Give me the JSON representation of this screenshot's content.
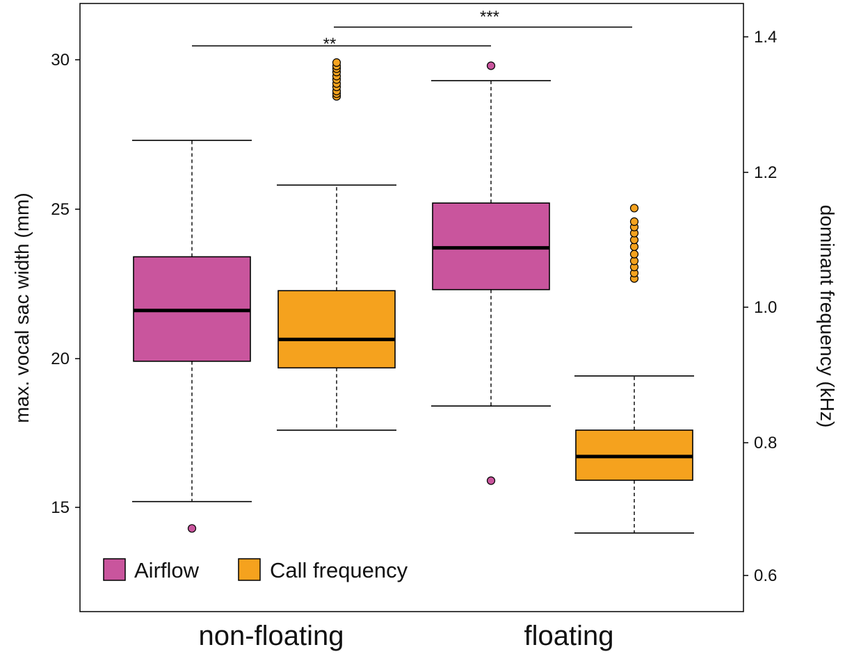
{
  "chart_data": {
    "type": "box",
    "categories": [
      "non-floating",
      "floating"
    ],
    "ylabel_left": "max. vocal sac width (mm)",
    "ylabel_right": "dominant frequency (kHz)",
    "left_ticks": [
      "15",
      "20",
      "25",
      "30"
    ],
    "right_ticks": [
      "0.6",
      "0.8",
      "1.0",
      "1.2",
      "1.4"
    ],
    "left_axis": {
      "unit": "mm",
      "ticks": [
        15,
        20,
        25,
        30
      ],
      "range": [
        11.9,
        31.9
      ]
    },
    "right_axis": {
      "unit": "kHz",
      "ticks": [
        0.6,
        0.8,
        1.0,
        1.2,
        1.4
      ],
      "range": [
        0.58,
        1.47
      ]
    },
    "legend": {
      "position": "bottom-left",
      "entries": [
        "Airflow",
        "Call frequency"
      ]
    },
    "colors": {
      "Airflow": "#c9559d",
      "Call frequency": "#f5a21e"
    },
    "series": [
      {
        "name": "Airflow",
        "axis": "left",
        "boxes": [
          {
            "category": "non-floating",
            "whisker_low": 15.2,
            "q1": 19.9,
            "median": 21.6,
            "q3": 23.4,
            "whisker_high": 27.3,
            "outliers": [
              14.3
            ]
          },
          {
            "category": "floating",
            "whisker_low": 18.4,
            "q1": 22.3,
            "median": 23.7,
            "q3": 25.2,
            "whisker_high": 29.3,
            "outliers": [
              15.9,
              29.8
            ]
          }
        ]
      },
      {
        "name": "Call frequency",
        "axis": "right",
        "boxes": [
          {
            "category": "non-floating",
            "whisker_low": 0.819,
            "q1": 0.911,
            "median": 0.953,
            "q3": 1.025,
            "whisker_high": 1.181,
            "outliers": [
              1.312,
              1.316,
              1.32,
              1.326,
              1.331,
              1.337,
              1.342,
              1.348,
              1.353,
              1.357,
              1.362
            ]
          },
          {
            "category": "floating",
            "whisker_low": 0.667,
            "q1": 0.745,
            "median": 0.78,
            "q3": 0.819,
            "whisker_high": 0.899,
            "outliers": [
              1.043,
              1.051,
              1.06,
              1.069,
              1.079,
              1.09,
              1.1,
              1.11,
              1.119,
              1.127,
              1.147
            ]
          }
        ]
      }
    ],
    "significance": [
      {
        "label": "**",
        "from": "non-floating Airflow",
        "to": "floating Airflow"
      },
      {
        "label": "***",
        "from": "non-floating Call frequency",
        "to": "floating Call frequency"
      }
    ]
  }
}
